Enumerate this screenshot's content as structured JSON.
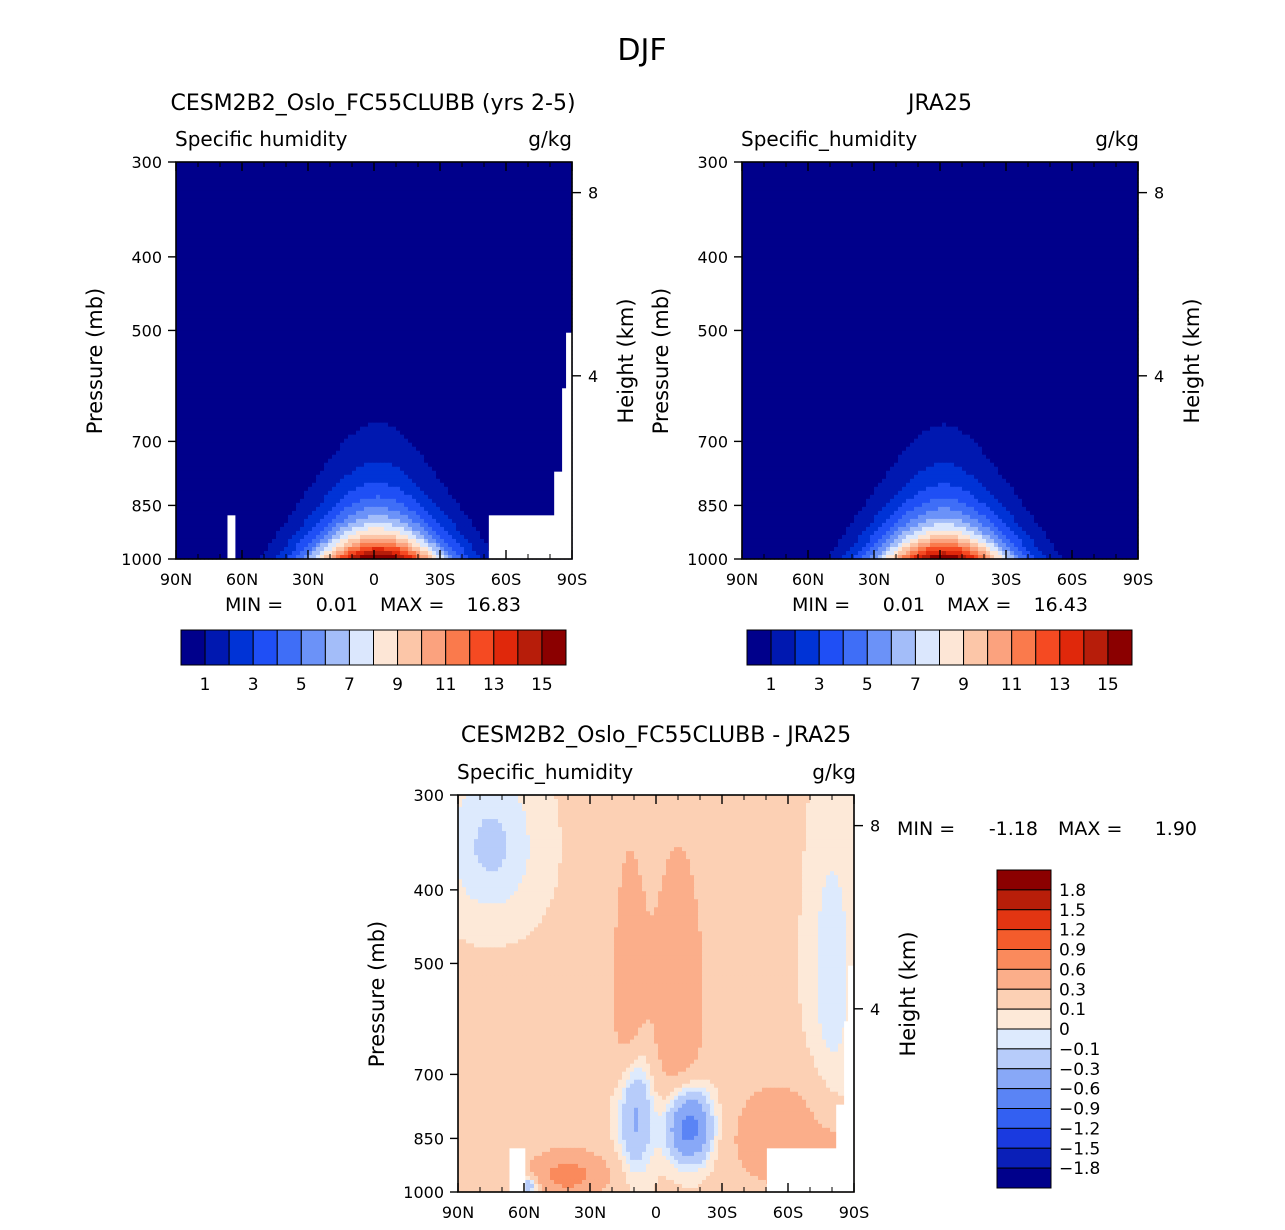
{
  "figure": {
    "title": "DJF"
  },
  "colors": {
    "abs_levels": [
      "#00008b",
      "#0018b0",
      "#0033d6",
      "#1f4ff5",
      "#3f6ef7",
      "#6b92f8",
      "#a3bdf9",
      "#dbe7fd",
      "#fde6d6",
      "#fcc6a8",
      "#fba27e",
      "#fa7a4c",
      "#f54a22",
      "#e0280b",
      "#b71d0a",
      "#8b0000"
    ],
    "diff_levels": [
      "#00008b",
      "#0a1fb8",
      "#1a3ae0",
      "#3360f2",
      "#5a84f5",
      "#88a8f7",
      "#b7ccfa",
      "#ddeafd",
      "#fde9d8",
      "#fcd0b4",
      "#fbae8a",
      "#fa8a5c",
      "#f45c2c",
      "#e23512",
      "#b81e09",
      "#8b0000"
    ]
  },
  "chart_data": [
    {
      "id": "model",
      "type": "contour",
      "title": "CESM2B2_Oslo_FC55CLUBB (yrs 2-5)",
      "variable": "Specific humidity",
      "units": "g/kg",
      "ylabel": "Pressure (mb)",
      "ylabel_right": "Height (km)",
      "x_ticks": [
        "90N",
        "60N",
        "30N",
        "0",
        "30S",
        "60S",
        "90S"
      ],
      "y_ticks": [
        "300",
        "400",
        "500",
        "700",
        "850",
        "1000"
      ],
      "height_ticks": [
        "8",
        "4"
      ],
      "min_label": "MIN =",
      "min_value": "0.01",
      "max_label": "MAX =",
      "max_value": "16.83",
      "colorbar_labels": [
        "1",
        "3",
        "5",
        "7",
        "9",
        "11",
        "13",
        "15"
      ]
    },
    {
      "id": "obs",
      "type": "contour",
      "title": "JRA25",
      "variable": "Specific_humidity",
      "units": "g/kg",
      "ylabel": "Pressure (mb)",
      "ylabel_right": "Height (km)",
      "x_ticks": [
        "90N",
        "60N",
        "30N",
        "0",
        "30S",
        "60S",
        "90S"
      ],
      "y_ticks": [
        "300",
        "400",
        "500",
        "700",
        "850",
        "1000"
      ],
      "height_ticks": [
        "8",
        "4"
      ],
      "min_label": "MIN =",
      "min_value": "0.01",
      "max_label": "MAX =",
      "max_value": "16.43",
      "colorbar_labels": [
        "1",
        "3",
        "5",
        "7",
        "9",
        "11",
        "13",
        "15"
      ]
    },
    {
      "id": "diff",
      "type": "contour",
      "title": "CESM2B2_Oslo_FC55CLUBB - JRA25",
      "variable": "Specific_humidity",
      "units": "g/kg",
      "ylabel": "Pressure (mb)",
      "ylabel_right": "Height (km)",
      "x_ticks": [
        "90N",
        "60N",
        "30N",
        "0",
        "30S",
        "60S",
        "90S"
      ],
      "y_ticks": [
        "300",
        "400",
        "500",
        "700",
        "850",
        "1000"
      ],
      "height_ticks": [
        "8",
        "4"
      ],
      "min_label": "MIN =",
      "min_value": "-1.18",
      "max_label": "MAX =",
      "max_value": "1.90",
      "colorbar_labels": [
        "1.8",
        "1.5",
        "1.2",
        "0.9",
        "0.6",
        "0.3",
        "0.1",
        "0",
        "-0.1",
        "-0.3",
        "-0.6",
        "-0.9",
        "-1.2",
        "-1.5",
        "-1.8"
      ]
    }
  ]
}
